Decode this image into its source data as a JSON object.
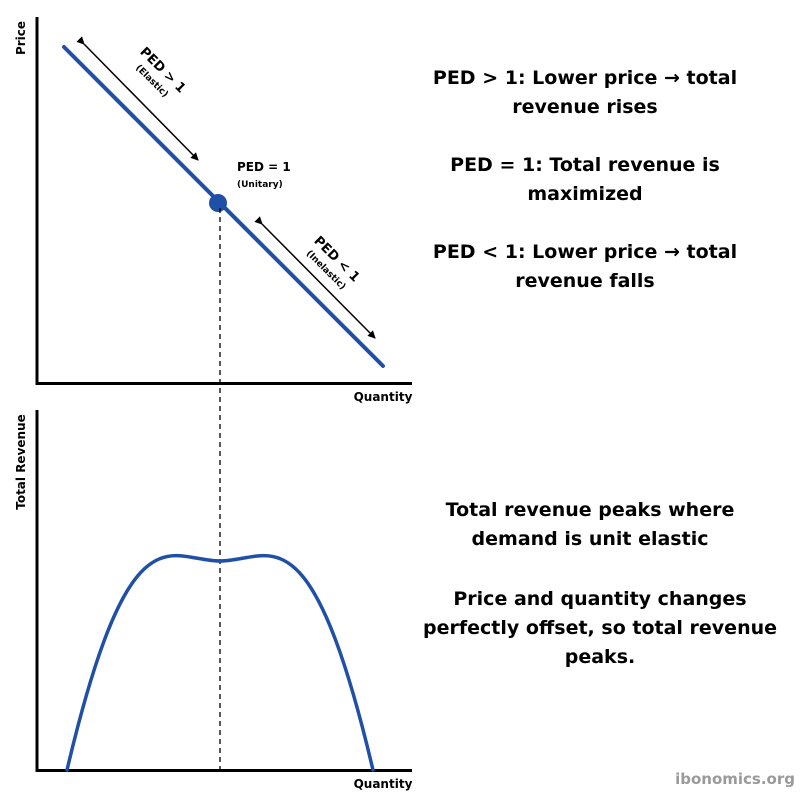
{
  "colors": {
    "curve": "#1f4fa6",
    "axis": "#000000",
    "watermark": "#9a9a9a",
    "background": "#ffffff"
  },
  "top_graph": {
    "y_axis_label": "Price",
    "x_axis_label": "Quantity",
    "elastic_label": "PED > 1",
    "elastic_sublabel": "(Elastic)",
    "unitary_label": "PED = 1",
    "unitary_sublabel": "(Unitary)",
    "inelastic_label": "PED < 1",
    "inelastic_sublabel": "(Inelastic)"
  },
  "bottom_graph": {
    "y_axis_label": "Total Revenue",
    "x_axis_label": "Quantity"
  },
  "notes": {
    "elastic": "PED > 1: Lower price → total revenue rises",
    "unitary": "PED = 1: Total revenue is maximized",
    "inelastic": "PED < 1: Lower price → total revenue falls",
    "peak": "Total revenue peaks where demand is unit elastic",
    "offset": "Price and quantity changes perfectly offset, so total revenue peaks."
  },
  "watermark": "ibonomics.org"
}
